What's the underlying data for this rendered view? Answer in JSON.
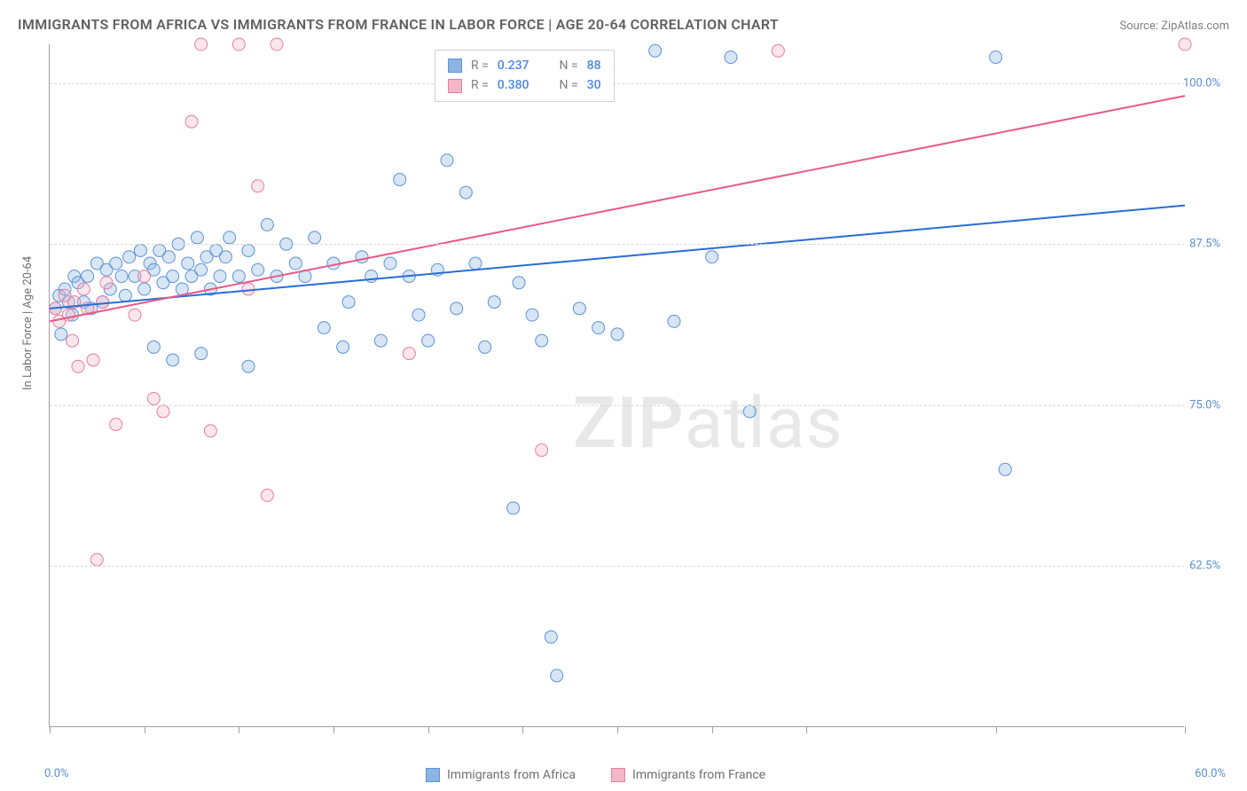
{
  "title": "IMMIGRANTS FROM AFRICA VS IMMIGRANTS FROM FRANCE IN LABOR FORCE | AGE 20-64 CORRELATION CHART",
  "source_label": "Source: ",
  "source_name": "ZipAtlas.com",
  "ylabel": "In Labor Force | Age 20-64",
  "chart": {
    "type": "scatter-with-trendlines",
    "xlim": [
      0,
      60
    ],
    "ylim": [
      50,
      103
    ],
    "xtick_positions": [
      0,
      5,
      10,
      15,
      20,
      25,
      30,
      35,
      40,
      50,
      60
    ],
    "xtick_labels_shown": {
      "left": "0.0%",
      "right": "60.0%"
    },
    "ytick_positions": [
      62.5,
      75.0,
      87.5,
      100.0
    ],
    "ytick_labels": [
      "62.5%",
      "75.0%",
      "87.5%",
      "100.0%"
    ],
    "marker_radius": 7,
    "marker_fill_opacity": 0.35,
    "marker_stroke_width": 1,
    "line_width": 2,
    "grid_color": "#d8d8d8",
    "series": [
      {
        "name": "Immigrants from Africa",
        "color_fill": "#8db4e2",
        "color_stroke": "#5b94d6",
        "line_color": "#2b6cd4",
        "R": "0.237",
        "N": "88",
        "trendline": {
          "x1": 0,
          "y1": 82.5,
          "x2": 60,
          "y2": 90.5
        },
        "points": [
          [
            0.3,
            82.5
          ],
          [
            0.5,
            83.5
          ],
          [
            0.8,
            84
          ],
          [
            1.0,
            83
          ],
          [
            1.2,
            82
          ],
          [
            1.3,
            85
          ],
          [
            1.5,
            84.5
          ],
          [
            1.8,
            83
          ],
          [
            2.0,
            85
          ],
          [
            2.2,
            82.5
          ],
          [
            2.5,
            86
          ],
          [
            0.6,
            80.5
          ],
          [
            2.8,
            83
          ],
          [
            3.0,
            85.5
          ],
          [
            3.2,
            84
          ],
          [
            3.5,
            86
          ],
          [
            3.8,
            85
          ],
          [
            4.0,
            83.5
          ],
          [
            4.2,
            86.5
          ],
          [
            4.5,
            85
          ],
          [
            4.8,
            87
          ],
          [
            5.0,
            84
          ],
          [
            5.3,
            86
          ],
          [
            5.5,
            85.5
          ],
          [
            5.8,
            87
          ],
          [
            6.0,
            84.5
          ],
          [
            6.3,
            86.5
          ],
          [
            6.5,
            85
          ],
          [
            6.8,
            87.5
          ],
          [
            7.0,
            84
          ],
          [
            7.3,
            86
          ],
          [
            7.5,
            85
          ],
          [
            7.8,
            88
          ],
          [
            8.0,
            85.5
          ],
          [
            8.3,
            86.5
          ],
          [
            8.5,
            84
          ],
          [
            8.8,
            87
          ],
          [
            9.0,
            85
          ],
          [
            9.3,
            86.5
          ],
          [
            9.5,
            88
          ],
          [
            10.0,
            85
          ],
          [
            10.5,
            87
          ],
          [
            11.0,
            85.5
          ],
          [
            11.5,
            89
          ],
          [
            12.0,
            85
          ],
          [
            12.5,
            87.5
          ],
          [
            13.0,
            86
          ],
          [
            13.5,
            85
          ],
          [
            14.0,
            88
          ],
          [
            14.5,
            81
          ],
          [
            15.0,
            86
          ],
          [
            15.5,
            79.5
          ],
          [
            15.8,
            83
          ],
          [
            16.5,
            86.5
          ],
          [
            17.0,
            85
          ],
          [
            17.5,
            80
          ],
          [
            18.0,
            86
          ],
          [
            18.5,
            92.5
          ],
          [
            19.0,
            85
          ],
          [
            19.5,
            82
          ],
          [
            20.0,
            80
          ],
          [
            20.5,
            85.5
          ],
          [
            21.0,
            94
          ],
          [
            21.5,
            82.5
          ],
          [
            22.0,
            91.5
          ],
          [
            22.5,
            86
          ],
          [
            23.0,
            79.5
          ],
          [
            23.5,
            83
          ],
          [
            24.5,
            67
          ],
          [
            24.8,
            84.5
          ],
          [
            25.5,
            82
          ],
          [
            26.0,
            80
          ],
          [
            26.5,
            57
          ],
          [
            26.8,
            54
          ],
          [
            28.0,
            82.5
          ],
          [
            29.0,
            81
          ],
          [
            30.0,
            80.5
          ],
          [
            32.0,
            102.5
          ],
          [
            33.0,
            81.5
          ],
          [
            35.0,
            86.5
          ],
          [
            36.0,
            102
          ],
          [
            37.0,
            74.5
          ],
          [
            50.0,
            102
          ],
          [
            50.5,
            70
          ],
          [
            5.5,
            79.5
          ],
          [
            6.5,
            78.5
          ],
          [
            8.0,
            79
          ],
          [
            10.5,
            78
          ]
        ]
      },
      {
        "name": "Immigrants from France",
        "color_fill": "#f4b7c7",
        "color_stroke": "#ea7ca0",
        "line_color": "#e85a87",
        "R": "0.380",
        "N": "30",
        "trendline": {
          "x1": 0,
          "y1": 81.5,
          "x2": 60,
          "y2": 99
        },
        "points": [
          [
            0.3,
            82.5
          ],
          [
            0.5,
            81.5
          ],
          [
            0.8,
            83.5
          ],
          [
            1.0,
            82
          ],
          [
            1.2,
            80
          ],
          [
            1.3,
            83
          ],
          [
            1.5,
            78
          ],
          [
            1.8,
            84
          ],
          [
            2.0,
            82.5
          ],
          [
            2.3,
            78.5
          ],
          [
            2.5,
            63
          ],
          [
            2.8,
            83
          ],
          [
            3.0,
            84.5
          ],
          [
            3.5,
            73.5
          ],
          [
            4.5,
            82
          ],
          [
            5.0,
            85
          ],
          [
            5.5,
            75.5
          ],
          [
            6.0,
            74.5
          ],
          [
            7.5,
            97
          ],
          [
            8.0,
            103
          ],
          [
            8.5,
            73
          ],
          [
            10.0,
            103
          ],
          [
            10.5,
            84
          ],
          [
            11.0,
            92
          ],
          [
            11.5,
            68
          ],
          [
            12.0,
            103
          ],
          [
            19.0,
            79
          ],
          [
            26.0,
            71.5
          ],
          [
            38.5,
            102.5
          ],
          [
            60,
            103
          ]
        ]
      }
    ]
  },
  "legend_top": {
    "rows": [
      {
        "swatch_fill": "#8db4e2",
        "swatch_border": "#5b94d6",
        "r": "0.237",
        "n": "88"
      },
      {
        "swatch_fill": "#f4b7c7",
        "swatch_border": "#ea7ca0",
        "r": "0.380",
        "n": "30"
      }
    ],
    "r_label": "R = ",
    "n_label": "N = "
  },
  "legend_bottom": [
    {
      "swatch_fill": "#8db4e2",
      "swatch_border": "#5b94d6",
      "label": "Immigrants from Africa"
    },
    {
      "swatch_fill": "#f4b7c7",
      "swatch_border": "#ea7ca0",
      "label": "Immigrants from France"
    }
  ],
  "watermark": {
    "part1": "ZIP",
    "part2": "atlas"
  }
}
